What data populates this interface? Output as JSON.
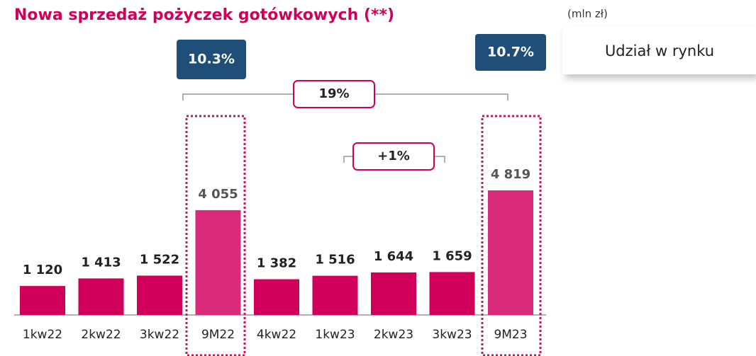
{
  "chart_data": {
    "type": "bar",
    "title": "Nowa sprzedaż pożyczek gotówkowych (**)",
    "unit": "(mln zł)",
    "legend": "Udział w rynku",
    "categories": [
      "1kw22",
      "2kw22",
      "3kw22",
      "9M22",
      "4kw22",
      "1kw23",
      "2kw23",
      "3kw23",
      "9M23"
    ],
    "values": [
      1120,
      1413,
      1522,
      4055,
      1382,
      1516,
      1644,
      1659,
      4819
    ],
    "value_labels": [
      "1 120",
      "1 413",
      "1 522",
      "4 055",
      "1 382",
      "1 516",
      "1 644",
      "1 659",
      "4 819"
    ],
    "colors": [
      "#d0005a",
      "#d0005a",
      "#d0005a",
      "#d92b7a",
      "#d0005a",
      "#d0005a",
      "#d0005a",
      "#d0005a",
      "#d92b7a"
    ],
    "annotations": {
      "market_share": [
        "10.3%",
        "10.7%"
      ],
      "growth": [
        "19%",
        "+1%"
      ]
    }
  }
}
